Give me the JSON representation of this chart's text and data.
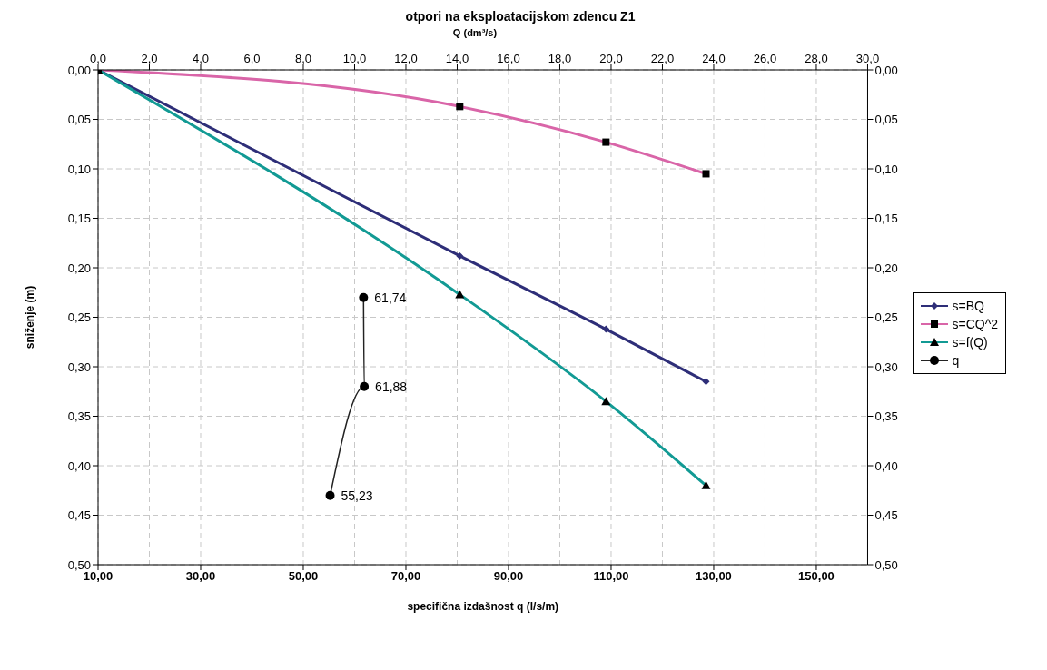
{
  "chart_data": {
    "type": "line",
    "title": "otpori na eksploatacijskom zdencu Z1",
    "x2label": "Q (dm³/s)",
    "xlabel": "specifična izdašnost q (l/s/m)",
    "ylabel": "sniženje (m)",
    "xlim": [
      10,
      160
    ],
    "xticks": [
      {
        "value": 10,
        "label": "10,00"
      },
      {
        "value": 30,
        "label": "30,00"
      },
      {
        "value": 50,
        "label": "50,00"
      },
      {
        "value": 70,
        "label": "70,00"
      },
      {
        "value": 90,
        "label": "90,00"
      },
      {
        "value": 110,
        "label": "110,00"
      },
      {
        "value": 130,
        "label": "130,00"
      },
      {
        "value": 150,
        "label": "150,00"
      }
    ],
    "x2lim": [
      0,
      30
    ],
    "x2ticks": [
      {
        "value": 0,
        "label": "0,0"
      },
      {
        "value": 2,
        "label": "2,0"
      },
      {
        "value": 4,
        "label": "4,0"
      },
      {
        "value": 6,
        "label": "6,0"
      },
      {
        "value": 8,
        "label": "8,0"
      },
      {
        "value": 10,
        "label": "10,0"
      },
      {
        "value": 12,
        "label": "12,0"
      },
      {
        "value": 14,
        "label": "14,0"
      },
      {
        "value": 16,
        "label": "16,0"
      },
      {
        "value": 18,
        "label": "18,0"
      },
      {
        "value": 20,
        "label": "20,0"
      },
      {
        "value": 22,
        "label": "22,0"
      },
      {
        "value": 24,
        "label": "24,0"
      },
      {
        "value": 26,
        "label": "26,0"
      },
      {
        "value": 28,
        "label": "28,0"
      },
      {
        "value": 30,
        "label": "30,0"
      }
    ],
    "ylim": [
      0.5,
      0
    ],
    "yticks": [
      {
        "value": 0,
        "label": "0,00"
      },
      {
        "value": 0.05,
        "label": "0,05"
      },
      {
        "value": 0.1,
        "label": "0,10"
      },
      {
        "value": 0.15,
        "label": "0,15"
      },
      {
        "value": 0.2,
        "label": "0,20"
      },
      {
        "value": 0.25,
        "label": "0,25"
      },
      {
        "value": 0.3,
        "label": "0,30"
      },
      {
        "value": 0.35,
        "label": "0,35"
      },
      {
        "value": 0.4,
        "label": "0,40"
      },
      {
        "value": 0.45,
        "label": "0,45"
      },
      {
        "value": 0.5,
        "label": "0,50"
      }
    ],
    "y2lim": [
      0.5,
      0
    ],
    "y2ticks": [
      {
        "value": 0,
        "label": "0,00"
      },
      {
        "value": 0.05,
        "label": "0,05"
      },
      {
        "value": 0.1,
        "label": "0,10"
      },
      {
        "value": 0.15,
        "label": "0,15"
      },
      {
        "value": 0.2,
        "label": "0,20"
      },
      {
        "value": 0.25,
        "label": "0,25"
      },
      {
        "value": 0.3,
        "label": "0,30"
      },
      {
        "value": 0.35,
        "label": "0,35"
      },
      {
        "value": 0.4,
        "label": "0,40"
      },
      {
        "value": 0.45,
        "label": "0,45"
      },
      {
        "value": 0.5,
        "label": "0,50"
      }
    ],
    "grid": true,
    "legend": "right",
    "series": [
      {
        "name": "s=BQ",
        "color": "#2e2e78",
        "axis": "x2",
        "marker": "diamond",
        "x": [
          0,
          14.1,
          19.8,
          23.7
        ],
        "values": [
          0,
          0.188,
          0.262,
          0.315
        ]
      },
      {
        "name": "s=CQ^2",
        "color": "#d965a8",
        "axis": "x2",
        "marker": "square",
        "x": [
          0,
          14.1,
          19.8,
          23.7
        ],
        "values": [
          0,
          0.037,
          0.073,
          0.105
        ]
      },
      {
        "name": "s=f(Q)",
        "color": "#129a94",
        "axis": "x2",
        "marker": "triangle",
        "x": [
          0,
          14.1,
          19.8,
          23.7
        ],
        "values": [
          0,
          0.227,
          0.335,
          0.42
        ]
      },
      {
        "name": "q",
        "color": "#222222",
        "marker": "circle",
        "x": [
          61.74,
          61.88,
          55.23
        ],
        "values": [
          0.23,
          0.32,
          0.43
        ]
      }
    ],
    "annotations": [
      {
        "text": "61,74",
        "x": 61.74,
        "y": 0.23
      },
      {
        "text": "61,88",
        "x": 61.88,
        "y": 0.32
      },
      {
        "text": "55,23",
        "x": 55.23,
        "y": 0.43
      }
    ]
  }
}
